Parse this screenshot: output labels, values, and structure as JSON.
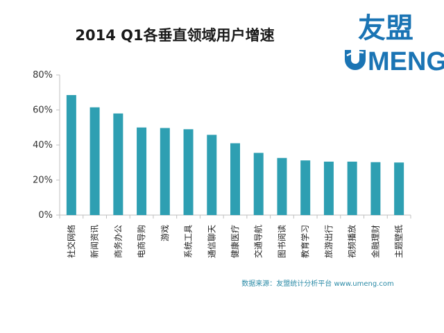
{
  "chart_data": {
    "type": "bar",
    "title": "2014 Q1各垂直领域用户增速",
    "categories": [
      "社交网络",
      "新闻资讯",
      "商务办公",
      "电商导购",
      "游戏",
      "系统工具",
      "通信聊天",
      "健康医疗",
      "交通导航",
      "图书阅读",
      "教育学习",
      "旅游出行",
      "视频播放",
      "金融理财",
      "主题壁纸"
    ],
    "values": [
      68.5,
      61.5,
      58,
      50,
      49.7,
      49,
      45.8,
      41,
      35.5,
      32.6,
      31.2,
      30.5,
      30.5,
      30.2,
      30
    ],
    "ylim": [
      0,
      80
    ],
    "yticks": [
      "0%",
      "20%",
      "40%",
      "60%",
      "80%"
    ],
    "ytick_values": [
      0,
      20,
      40,
      60,
      80
    ],
    "grid": false,
    "bar_color": "#2e9fb2",
    "axis_color": "#bfbfbf"
  },
  "logo": {
    "text_cn": "友盟",
    "text_en": "MENG",
    "color": "#1a74b4"
  },
  "source": "数据来源：友盟统计分析平台 www.umeng.com"
}
